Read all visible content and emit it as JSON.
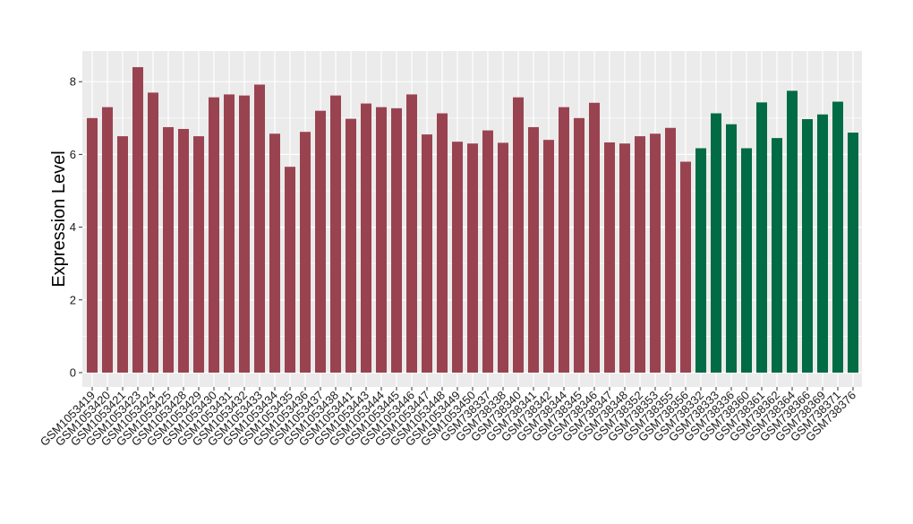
{
  "chart_data": {
    "type": "bar",
    "title": "",
    "xlabel": "",
    "ylabel": "Expression Level",
    "ylim": [
      0,
      8.8
    ],
    "yticks": [
      0,
      2,
      4,
      6,
      8
    ],
    "grid": true,
    "legend": "none",
    "colors": {
      "panel_background": "#ebebeb",
      "grid_line": "#ffffff",
      "group_a": "#9a4350",
      "group_b": "#006b45"
    },
    "categories": [
      "GSM1053419",
      "GSM1053420",
      "GSM1053421",
      "GSM1053423",
      "GSM1053424",
      "GSM1053425",
      "GSM1053428",
      "GSM1053429",
      "GSM1053430",
      "GSM1053431",
      "GSM1053432",
      "GSM1053433",
      "GSM1053434",
      "GSM1053435",
      "GSM1053436",
      "GSM1053437",
      "GSM1053438",
      "GSM1053441",
      "GSM1053443",
      "GSM1053444",
      "GSM1053445",
      "GSM1053446",
      "GSM1053447",
      "GSM1053448",
      "GSM1053449",
      "GSM1053450",
      "GSM738337",
      "GSM738338",
      "GSM738340",
      "GSM738341",
      "GSM738342",
      "GSM738344",
      "GSM738345",
      "GSM738346",
      "GSM738347",
      "GSM738348",
      "GSM738352",
      "GSM738353",
      "GSM738355",
      "GSM738356",
      "GSM738332",
      "GSM738333",
      "GSM738336",
      "GSM738360",
      "GSM738361",
      "GSM738362",
      "GSM738364",
      "GSM738366",
      "GSM738369",
      "GSM738371",
      "GSM738376"
    ],
    "values": [
      7.0,
      7.3,
      6.5,
      8.4,
      7.7,
      6.75,
      6.7,
      6.5,
      7.57,
      7.65,
      7.62,
      7.92,
      6.57,
      5.66,
      6.62,
      7.2,
      7.62,
      6.98,
      7.4,
      7.3,
      7.27,
      7.65,
      6.55,
      7.13,
      6.35,
      6.3,
      6.66,
      6.32,
      7.57,
      6.75,
      6.4,
      7.3,
      7.0,
      7.42,
      6.33,
      6.3,
      6.5,
      6.57,
      6.73,
      5.8,
      6.17,
      7.13,
      6.83,
      6.17,
      7.43,
      6.45,
      7.75,
      6.97,
      7.1,
      7.45,
      6.6
    ],
    "groups": [
      "a",
      "a",
      "a",
      "a",
      "a",
      "a",
      "a",
      "a",
      "a",
      "a",
      "a",
      "a",
      "a",
      "a",
      "a",
      "a",
      "a",
      "a",
      "a",
      "a",
      "a",
      "a",
      "a",
      "a",
      "a",
      "a",
      "a",
      "a",
      "a",
      "a",
      "a",
      "a",
      "a",
      "a",
      "a",
      "a",
      "a",
      "a",
      "a",
      "a",
      "b",
      "b",
      "b",
      "b",
      "b",
      "b",
      "b",
      "b",
      "b",
      "b",
      "b"
    ]
  }
}
